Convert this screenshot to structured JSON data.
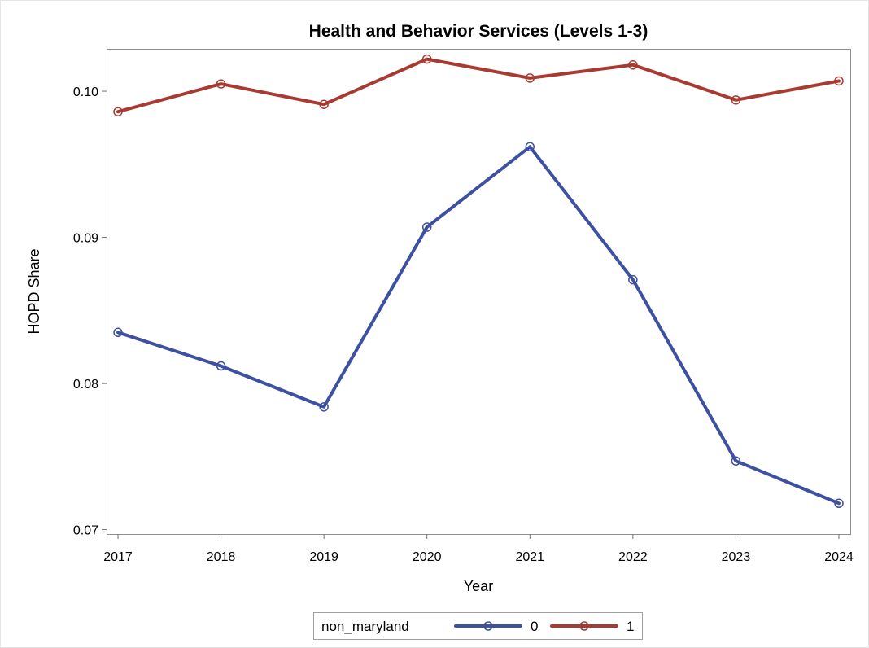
{
  "chart_data": {
    "type": "line",
    "title": "Health and Behavior Services (Levels 1-3)",
    "xlabel": "Year",
    "ylabel": "HOPD Share",
    "x": [
      2017,
      2018,
      2019,
      2020,
      2021,
      2022,
      2023,
      2024
    ],
    "xticks": [
      "2017",
      "2018",
      "2019",
      "2020",
      "2021",
      "2022",
      "2023",
      "2024"
    ],
    "yticks": [
      0.07,
      0.08,
      0.09,
      0.1
    ],
    "ytick_labels": [
      "0.07",
      "0.08",
      "0.09",
      "0.10"
    ],
    "ylim": [
      0.0697,
      0.1029
    ],
    "xlim": [
      2017,
      2024
    ],
    "grid": false,
    "legend": {
      "title": "non_maryland",
      "placement": "bottom-center"
    },
    "series": [
      {
        "name": "0",
        "color": "#3e50a0",
        "marker": "circle",
        "values": [
          0.0835,
          0.0812,
          0.0784,
          0.0907,
          0.0962,
          0.0871,
          0.0747,
          0.0718
        ]
      },
      {
        "name": "1",
        "color": "#a83a32",
        "marker": "circle",
        "values": [
          0.0986,
          0.1005,
          0.0991,
          0.1022,
          0.1009,
          0.1018,
          0.0994,
          0.1007
        ]
      }
    ]
  }
}
